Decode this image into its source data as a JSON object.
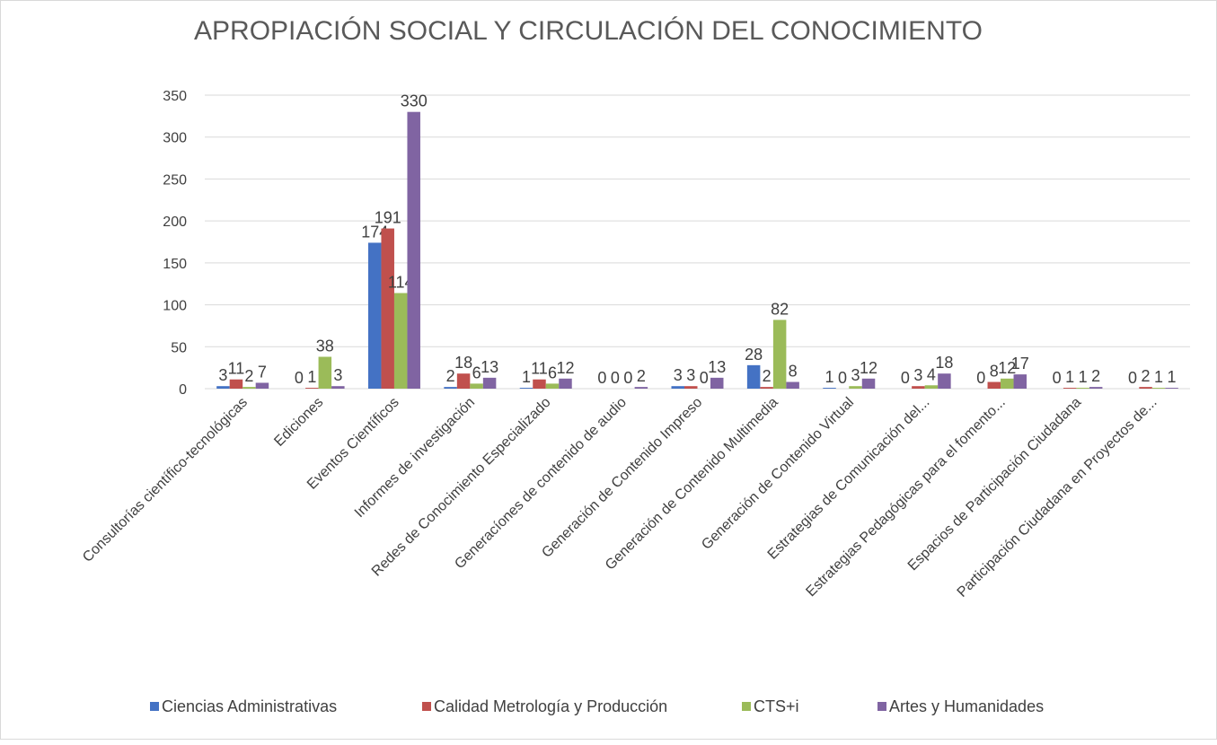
{
  "chart_data": {
    "type": "bar",
    "title": "APROPIACIÓN SOCIAL Y CIRCULACIÓN DEL CONOCIMIENTO",
    "categories": [
      "Consultorías científico-tecnológicas",
      "Ediciones",
      "Eventos Científicos",
      "Informes de investigación",
      "Redes de Conocimiento Especializado",
      "Generacíones de contenido de audio",
      "Generación de Contenido Impreso",
      "Generación de Contenido Multimedia",
      "Generación de Contenido Virtual",
      "Estrategias de Comunicación del...",
      "Estrategias Pedagógicas para el fomento...",
      "Espacios de Participación Ciudadana",
      "Participación Ciudadana en Proyectos de..."
    ],
    "series": [
      {
        "name": "Ciencias Administrativas",
        "color": "#4472c4",
        "values": [
          3,
          0,
          174,
          2,
          1,
          0,
          3,
          28,
          1,
          0,
          0,
          0,
          0
        ]
      },
      {
        "name": "Calidad Metrología y Producción",
        "color": "#c0504d",
        "values": [
          11,
          1,
          191,
          18,
          11,
          0,
          3,
          2,
          0,
          3,
          8,
          1,
          2
        ]
      },
      {
        "name": "CTS+i",
        "color": "#9bbb59",
        "values": [
          2,
          38,
          114,
          6,
          6,
          0,
          0,
          82,
          3,
          4,
          12,
          1,
          1
        ]
      },
      {
        "name": "Artes y Humanidades",
        "color": "#8064a2",
        "values": [
          7,
          3,
          330,
          13,
          12,
          2,
          13,
          8,
          12,
          18,
          17,
          2,
          1
        ]
      }
    ],
    "ylim": [
      0,
      350
    ],
    "yticks": [
      0,
      50,
      100,
      150,
      200,
      250,
      300,
      350
    ],
    "grid": true,
    "legend": "bottom"
  }
}
